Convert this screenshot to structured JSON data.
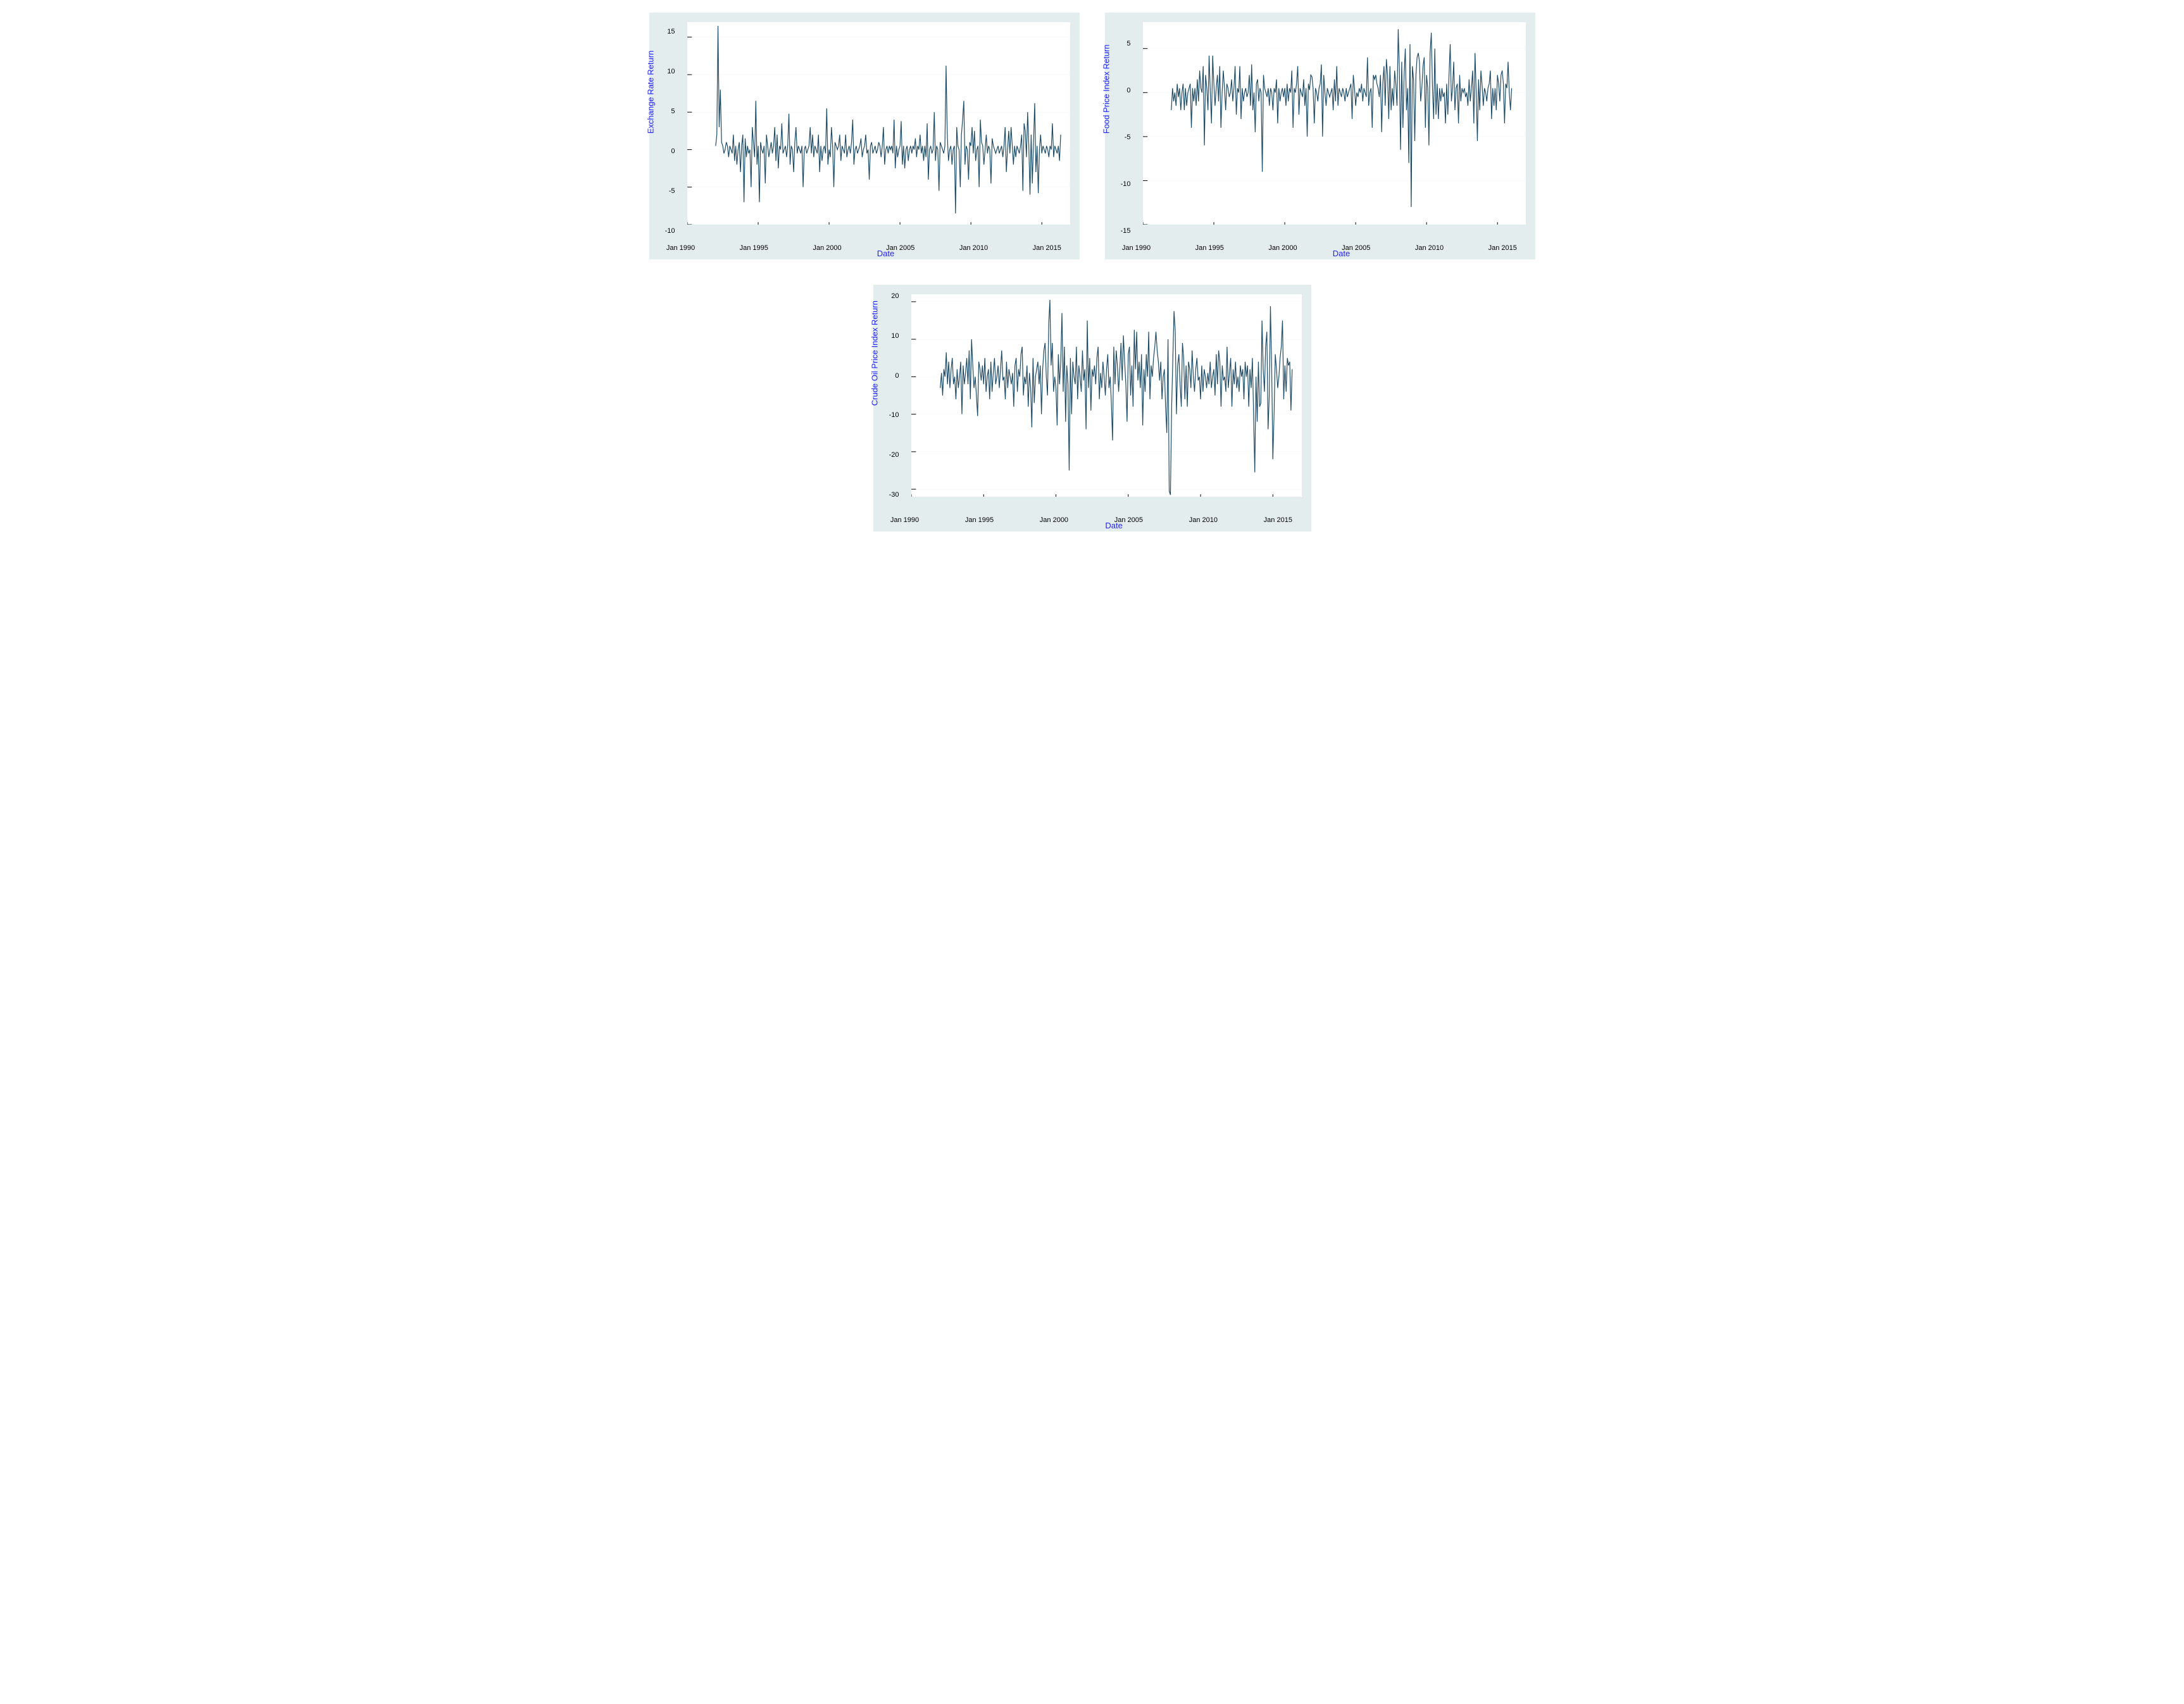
{
  "panels": {
    "exchange": {
      "type": "line",
      "ylabel": "Exchange Rate Return",
      "xlabel": "Date",
      "background_color": "#e4edee",
      "plot_bg": "#ffffff",
      "grid_color": "#e9f0f1",
      "line_color": "#1d4a66",
      "label_color": "#2020ff",
      "label_fontsize": 13,
      "tick_fontsize": 11,
      "line_width": 1.2,
      "xlim": [
        1990,
        2017
      ],
      "ylim": [
        -10,
        17
      ],
      "yticks": [
        -10,
        -5,
        0,
        5,
        10,
        15
      ],
      "xticks": [
        1990,
        1995,
        2000,
        2005,
        2010,
        2015
      ],
      "xtick_labels": [
        "Jan 1990",
        "Jan 1995",
        "Jan 2000",
        "Jan 2005",
        "Jan 2010",
        "Jan 2015"
      ],
      "series_start_year": 1992,
      "series_dt": 0.083333,
      "series": [
        0.5,
        2.0,
        16.5,
        3.0,
        8.0,
        1.0,
        0.5,
        -0.5,
        0.0,
        1.0,
        0.5,
        -1.0,
        0.5,
        0.0,
        -0.5,
        2.0,
        -1.5,
        0.5,
        -2.0,
        0.0,
        1.0,
        -3.0,
        0.5,
        2.0,
        -7.0,
        1.5,
        -1.0,
        0.5,
        -0.5,
        0.0,
        -5.0,
        3.0,
        1.0,
        -1.0,
        6.5,
        -2.0,
        0.5,
        -7.0,
        1.0,
        0.0,
        -0.5,
        0.5,
        -4.5,
        2.0,
        0.5,
        -1.0,
        0.0,
        1.0,
        -0.5,
        0.5,
        3.0,
        -1.5,
        2.0,
        -2.5,
        0.5,
        0.0,
        3.5,
        -0.5,
        0.0,
        0.5,
        -1.0,
        0.5,
        4.8,
        -2.0,
        0.5,
        0.0,
        -3.0,
        1.0,
        3.0,
        -0.5,
        0.5,
        0.0,
        -0.5,
        0.5,
        -5.0,
        0.0,
        0.5,
        -0.5,
        0.0,
        0.5,
        3.0,
        -0.5,
        2.0,
        -1.0,
        0.5,
        0.0,
        -0.5,
        2.0,
        -3.0,
        0.5,
        -1.5,
        0.0,
        0.5,
        -0.5,
        5.5,
        -2.0,
        0.0,
        -1.0,
        3.0,
        0.5,
        -5.0,
        1.0,
        0.5,
        0.0,
        0.5,
        2.0,
        -1.5,
        0.5,
        0.0,
        -0.5,
        2.0,
        -1.0,
        0.0,
        0.5,
        -0.5,
        1.0,
        4.0,
        -2.0,
        0.0,
        0.5,
        -0.5,
        0.0,
        0.5,
        1.5,
        -1.0,
        0.0,
        0.5,
        2.0,
        -0.5,
        0.0,
        -4.0,
        0.5,
        1.0,
        -0.5,
        0.0,
        0.5,
        -0.5,
        0.0,
        1.0,
        0.5,
        -1.0,
        0.5,
        3.0,
        -2.0,
        0.0,
        0.5,
        -0.5,
        0.5,
        0.0,
        0.5,
        -0.5,
        4.0,
        -2.5,
        0.5,
        -1.0,
        0.0,
        0.5,
        3.8,
        -2.0,
        0.5,
        -2.5,
        0.0,
        0.5,
        -1.5,
        0.0,
        0.5,
        -0.5,
        0.5,
        0.0,
        1.5,
        -1.0,
        0.5,
        0.0,
        2.0,
        -0.5,
        0.5,
        -1.5,
        0.5,
        -1.0,
        3.5,
        -4.0,
        0.0,
        0.5,
        -0.5,
        0.0,
        5.0,
        -1.5,
        0.5,
        0.0,
        -5.5,
        1.0,
        0.5,
        0.0,
        -0.5,
        0.5,
        11.2,
        2.0,
        -1.5,
        0.0,
        0.5,
        -2.0,
        0.0,
        0.5,
        -8.5,
        3.0,
        0.5,
        0.0,
        -5.0,
        2.0,
        4.0,
        6.5,
        -2.0,
        0.5,
        0.0,
        -4.0,
        1.0,
        0.5,
        3.0,
        -0.5,
        2.5,
        -1.5,
        0.0,
        0.5,
        -5.0,
        4.0,
        1.0,
        0.5,
        -2.0,
        0.0,
        2.0,
        -0.5,
        0.5,
        0.0,
        -4.5,
        1.5,
        0.5,
        0.0,
        -0.5,
        0.0,
        0.5,
        -0.5,
        0.0,
        0.5,
        -1.0,
        0.5,
        3.0,
        -3.0,
        0.0,
        2.5,
        -0.5,
        3.0,
        0.5,
        -2.0,
        0.5,
        -1.0,
        0.5,
        0.0,
        -0.5,
        0.5,
        2.0,
        -5.5,
        3.5,
        2.5,
        -1.0,
        5.0,
        0.5,
        -6.0,
        2.0,
        -4.5,
        1.0,
        6.2,
        -3.0,
        0.5,
        -5.8,
        0.0,
        2.0,
        -0.5,
        0.5,
        0.0,
        -0.5,
        0.5,
        0.0,
        -1.0,
        0.5,
        0.0,
        3.5,
        -1.0,
        0.5,
        0.0,
        -0.5,
        0.5,
        -1.5,
        2.0
      ]
    },
    "food": {
      "type": "line",
      "ylabel": "Food Price Index Return",
      "xlabel": "Date",
      "background_color": "#e4edee",
      "plot_bg": "#ffffff",
      "grid_color": "#e9f0f1",
      "line_color": "#1d4a66",
      "label_color": "#2020ff",
      "label_fontsize": 13,
      "tick_fontsize": 11,
      "line_width": 1.2,
      "xlim": [
        1990,
        2017
      ],
      "ylim": [
        -15,
        8
      ],
      "yticks": [
        -15,
        -10,
        -5,
        0,
        5
      ],
      "xticks": [
        1990,
        1995,
        2000,
        2005,
        2010,
        2015
      ],
      "xtick_labels": [
        "Jan 1990",
        "Jan 1995",
        "Jan 2000",
        "Jan 2005",
        "Jan 2010",
        "Jan 2015"
      ],
      "series_start_year": 1992,
      "series_dt": 0.083333,
      "series": [
        -2.0,
        0.5,
        -1.0,
        0.0,
        -1.5,
        1.0,
        -0.5,
        0.5,
        -2.0,
        0.0,
        1.0,
        -2.0,
        0.5,
        -1.5,
        0.0,
        0.5,
        1.0,
        -4.0,
        0.5,
        -1.0,
        0.5,
        -1.5,
        1.5,
        -1.0,
        2.5,
        0.5,
        0.0,
        3.0,
        -6.0,
        2.0,
        0.5,
        -2.0,
        4.2,
        0.0,
        -3.5,
        4.2,
        1.0,
        -1.5,
        0.5,
        2.0,
        -1.0,
        3.0,
        -4.0,
        0.0,
        2.5,
        0.5,
        -2.0,
        1.0,
        0.5,
        -0.5,
        0.0,
        1.5,
        -1.0,
        0.5,
        3.0,
        -2.5,
        0.5,
        0.0,
        3.0,
        -3.0,
        0.5,
        -1.0,
        0.0,
        0.5,
        -0.5,
        0.0,
        2.0,
        -1.5,
        3.2,
        -2.0,
        0.0,
        -4.5,
        1.0,
        1.5,
        -1.0,
        0.5,
        0.0,
        -9.0,
        2.0,
        0.5,
        0.0,
        -0.5,
        0.5,
        -1.5,
        0.5,
        0.0,
        -2.0,
        0.5,
        0.0,
        1.5,
        -3.5,
        0.5,
        -1.0,
        0.0,
        0.5,
        -0.5,
        0.5,
        -1.5,
        1.0,
        -1.0,
        0.5,
        0.0,
        2.5,
        -4.0,
        0.5,
        0.0,
        1.0,
        3.0,
        -2.5,
        0.5,
        0.0,
        -0.5,
        1.5,
        -1.5,
        0.5,
        -5.0,
        1.0,
        0.3,
        2.0,
        1.8,
        0.5,
        -3.5,
        0.5,
        0.0,
        -1.0,
        0.5,
        1.0,
        3.2,
        -5.0,
        2.0,
        0.0,
        -1.5,
        0.5,
        0.0,
        -0.5,
        0.0,
        0.5,
        -2.0,
        1.5,
        -1.0,
        3.0,
        -1.5,
        0.5,
        0.0,
        -0.5,
        0.5,
        0.0,
        -1.0,
        0.5,
        -0.5,
        0.0,
        0.5,
        1.0,
        -3.0,
        2.0,
        0.5,
        -1.5,
        0.0,
        -0.5,
        0.5,
        0.0,
        1.0,
        -1.0,
        0.5,
        0.0,
        -0.5,
        4.0,
        -1.5,
        0.0,
        0.5,
        -4.0,
        2.0,
        1.5,
        2.0,
        1.0,
        0.5,
        -0.5,
        2.0,
        -4.5,
        1.0,
        3.0,
        -1.5,
        3.8,
        2.0,
        -3.0,
        3.0,
        -2.0,
        0.5,
        -1.5,
        2.5,
        1.0,
        -1.5,
        7.2,
        2.5,
        -6.5,
        3.5,
        -4.0,
        2.0,
        5.0,
        -2.0,
        0.5,
        -8.0,
        5.5,
        -13.0,
        3.0,
        1.5,
        -5.5,
        2.0,
        4.0,
        4.5,
        3.5,
        -1.0,
        0.5,
        3.0,
        4.0,
        -4.0,
        2.0,
        0.5,
        -6.0,
        4.5,
        6.8,
        0.5,
        -3.0,
        5.0,
        -2.5,
        1.0,
        -3.0,
        0.5,
        -1.0,
        0.5,
        -0.5,
        0.0,
        -3.5,
        1.0,
        -2.5,
        2.0,
        5.5,
        -1.0,
        0.5,
        3.5,
        -2.0,
        0.5,
        1.0,
        -3.5,
        2.0,
        -1.0,
        0.5,
        0.0,
        0.5,
        -0.5,
        0.0,
        -1.5,
        1.5,
        -1.0,
        0.5,
        2.5,
        -3.5,
        4.5,
        0.0,
        -5.5,
        1.5,
        -2.0,
        2.5,
        0.8,
        -1.5,
        0.5,
        0.0,
        -1.0,
        0.5,
        1.0,
        2.5,
        -3.0,
        0.5,
        -1.5,
        0.5,
        -2.0,
        2.0,
        1.0,
        -1.0,
        2.0,
        2.5,
        1.0,
        -3.5,
        1.0,
        0.5,
        3.5,
        0.0,
        -2.0,
        0.5
      ]
    },
    "oil": {
      "type": "line",
      "ylabel": "Crude Oil Price Index Return",
      "xlabel": "Date",
      "background_color": "#e4edee",
      "plot_bg": "#ffffff",
      "grid_color": "#e9f0f1",
      "line_color": "#1d4a66",
      "label_color": "#2020ff",
      "label_fontsize": 13,
      "tick_fontsize": 11,
      "line_width": 1.2,
      "xlim": [
        1990,
        2017
      ],
      "ylim": [
        -32,
        22
      ],
      "yticks": [
        -30,
        -20,
        -10,
        0,
        10,
        20
      ],
      "xticks": [
        1990,
        1995,
        2000,
        2005,
        2010,
        2015
      ],
      "xtick_labels": [
        "Jan 1990",
        "Jan 1995",
        "Jan 2000",
        "Jan 2005",
        "Jan 2010",
        "Jan 2015"
      ],
      "series_start_year": 1992,
      "series_dt": 0.083333,
      "series": [
        -3,
        1,
        -5,
        2,
        0,
        6.5,
        -2,
        4,
        -3,
        2,
        5,
        -2,
        0,
        -6,
        2,
        -3,
        0,
        4,
        -10,
        3,
        -2,
        1,
        5,
        -2,
        7,
        -6,
        10,
        3,
        -3,
        0,
        -5,
        -10.5,
        4,
        2,
        -1,
        3,
        -2,
        5,
        -4,
        0,
        2,
        -6,
        4,
        -4,
        1,
        5,
        -2,
        0,
        3,
        -3,
        2,
        7,
        -1,
        0,
        -6,
        4,
        -3,
        2,
        0,
        -2,
        1,
        -8,
        3,
        5,
        -4,
        2,
        0,
        6,
        8,
        -5,
        0,
        -2,
        3,
        -8,
        1,
        -3,
        -13.5,
        5,
        -7,
        0,
        2,
        4,
        -2,
        3,
        -10,
        2,
        7,
        9,
        0,
        -5,
        14,
        20.5,
        3,
        9,
        -4,
        0,
        -3,
        -13,
        6,
        -2,
        4,
        17,
        -4,
        8,
        -12,
        3,
        -2,
        -25,
        5,
        -10,
        4,
        0,
        -2,
        8,
        -6,
        3,
        0,
        -4,
        7,
        -1,
        2,
        -14,
        15,
        -3,
        5,
        -9,
        2,
        0,
        3,
        -2,
        5,
        8,
        -6,
        1,
        -3,
        4,
        0,
        -5,
        2,
        6,
        -3,
        0,
        -7,
        -17,
        8,
        -2,
        7,
        3,
        -4,
        2,
        9,
        -1,
        11,
        4,
        -2,
        -12,
        6,
        8,
        -5,
        3,
        -8,
        12.5,
        2,
        12,
        -1,
        4,
        -3,
        6,
        -13,
        2,
        -4,
        6,
        0,
        12,
        -6,
        3,
        0,
        5,
        8,
        12,
        7,
        4,
        -1,
        4,
        -6,
        0,
        2,
        -8,
        -15,
        10,
        -30.5,
        -31.5,
        -8,
        5,
        17.5,
        12,
        -10,
        3,
        6,
        -2,
        -8,
        9,
        5,
        -6,
        3,
        -8,
        4,
        2,
        -3,
        7,
        0,
        -4,
        2,
        5,
        -1,
        0,
        -6,
        3,
        -4,
        2,
        0,
        -3,
        1,
        -2,
        4,
        -3,
        0,
        2,
        -5,
        6,
        -2,
        7,
        4,
        -8,
        3,
        -1,
        0,
        -4,
        8,
        -3,
        1,
        5,
        -8,
        2,
        -2,
        4,
        -3,
        0,
        -4,
        3,
        0,
        2,
        -6,
        4,
        0,
        3,
        -8,
        2,
        -3,
        5,
        -10,
        -25.5,
        0,
        -12,
        4,
        -8,
        -7,
        15,
        2,
        -4,
        8,
        12,
        -14,
        -5,
        18.8,
        3,
        -22,
        -10,
        6,
        2,
        -3,
        0,
        5,
        8,
        15,
        -6,
        3,
        -4,
        5,
        3,
        4,
        -9,
        2
      ]
    }
  }
}
